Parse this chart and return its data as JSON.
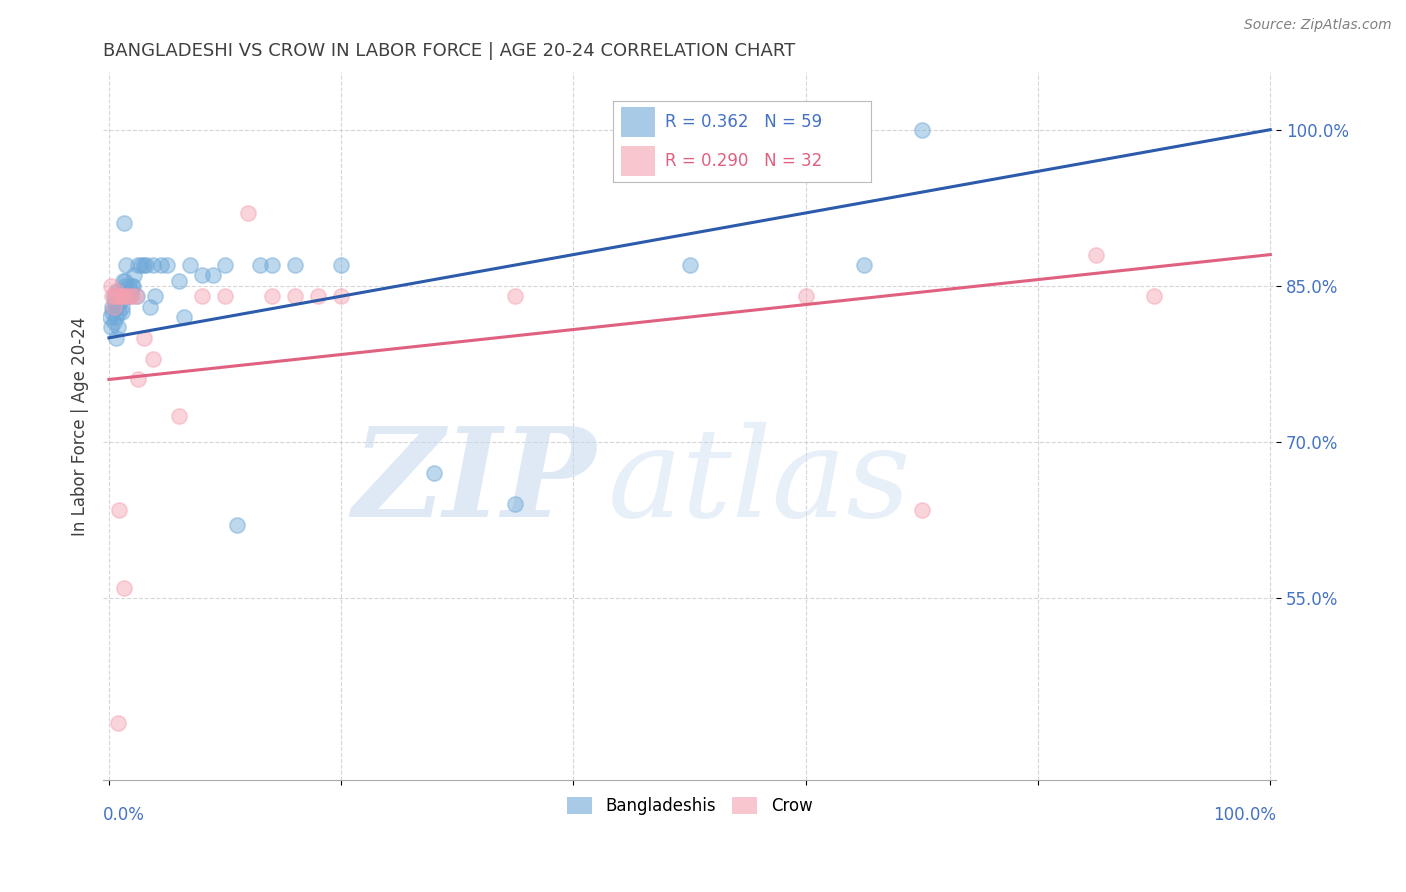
{
  "title": "BANGLADESHI VS CROW IN LABOR FORCE | AGE 20-24 CORRELATION CHART",
  "source": "Source: ZipAtlas.com",
  "ylabel": "In Labor Force | Age 20-24",
  "legend_blue_r": "0.362",
  "legend_blue_n": "59",
  "legend_pink_r": "0.290",
  "legend_pink_n": "32",
  "legend_blue_label": "Bangladeshis",
  "legend_pink_label": "Crow",
  "ytick_labels": [
    "55.0%",
    "70.0%",
    "85.0%",
    "100.0%"
  ],
  "ytick_values": [
    0.55,
    0.7,
    0.85,
    1.0
  ],
  "watermark_zip": "ZIP",
  "watermark_atlas": "atlas",
  "blue_scatter_x": [
    0.001,
    0.002,
    0.003,
    0.003,
    0.004,
    0.004,
    0.005,
    0.005,
    0.006,
    0.006,
    0.007,
    0.007,
    0.008,
    0.008,
    0.009,
    0.009,
    0.01,
    0.01,
    0.011,
    0.011,
    0.012,
    0.012,
    0.013,
    0.014,
    0.014,
    0.015,
    0.016,
    0.017,
    0.018,
    0.019,
    0.02,
    0.021,
    0.022,
    0.024,
    0.025,
    0.028,
    0.03,
    0.032,
    0.035,
    0.038,
    0.04,
    0.045,
    0.05,
    0.06,
    0.065,
    0.07,
    0.08,
    0.09,
    0.1,
    0.11,
    0.13,
    0.14,
    0.16,
    0.2,
    0.28,
    0.35,
    0.5,
    0.65,
    0.7
  ],
  "blue_scatter_y": [
    0.82,
    0.81,
    0.83,
    0.825,
    0.815,
    0.84,
    0.835,
    0.83,
    0.8,
    0.82,
    0.845,
    0.83,
    0.81,
    0.835,
    0.825,
    0.845,
    0.835,
    0.84,
    0.83,
    0.825,
    0.84,
    0.855,
    0.91,
    0.855,
    0.85,
    0.87,
    0.84,
    0.85,
    0.84,
    0.845,
    0.85,
    0.85,
    0.86,
    0.84,
    0.87,
    0.87,
    0.87,
    0.87,
    0.83,
    0.87,
    0.84,
    0.87,
    0.87,
    0.855,
    0.82,
    0.87,
    0.86,
    0.86,
    0.87,
    0.62,
    0.87,
    0.87,
    0.87,
    0.87,
    0.67,
    0.64,
    0.87,
    0.87,
    1.0
  ],
  "pink_scatter_x": [
    0.002,
    0.003,
    0.004,
    0.005,
    0.006,
    0.007,
    0.008,
    0.009,
    0.01,
    0.011,
    0.012,
    0.013,
    0.015,
    0.017,
    0.02,
    0.023,
    0.025,
    0.03,
    0.038,
    0.06,
    0.08,
    0.1,
    0.12,
    0.14,
    0.16,
    0.18,
    0.2,
    0.35,
    0.6,
    0.7,
    0.85,
    0.9
  ],
  "pink_scatter_y": [
    0.85,
    0.84,
    0.83,
    0.84,
    0.845,
    0.84,
    0.43,
    0.635,
    0.84,
    0.84,
    0.84,
    0.56,
    0.84,
    0.84,
    0.84,
    0.84,
    0.76,
    0.8,
    0.78,
    0.725,
    0.84,
    0.84,
    0.92,
    0.84,
    0.84,
    0.84,
    0.84,
    0.84,
    0.84,
    0.635,
    0.88,
    0.84
  ],
  "blue_line_y_start": 0.8,
  "blue_line_y_end": 1.0,
  "pink_line_y_start": 0.76,
  "pink_line_y_end": 0.88,
  "blue_color": "#6EA8D8",
  "pink_color": "#F4A0B0",
  "blue_line_color": "#2B5BAA",
  "pink_line_color": "#E06080",
  "background_color": "#FFFFFF",
  "grid_color": "#CCCCCC",
  "title_color": "#404040",
  "source_color": "#808080",
  "ylabel_color": "#404040",
  "axis_tick_color": "#4472C4",
  "scatter_size": 120,
  "scatter_alpha": 0.45,
  "watermark_color_zip": "#C5D8EE",
  "watermark_color_atlas": "#C5D8EE",
  "ylim_min": 0.375,
  "ylim_max": 1.055,
  "xlim_min": -0.005,
  "xlim_max": 1.005
}
